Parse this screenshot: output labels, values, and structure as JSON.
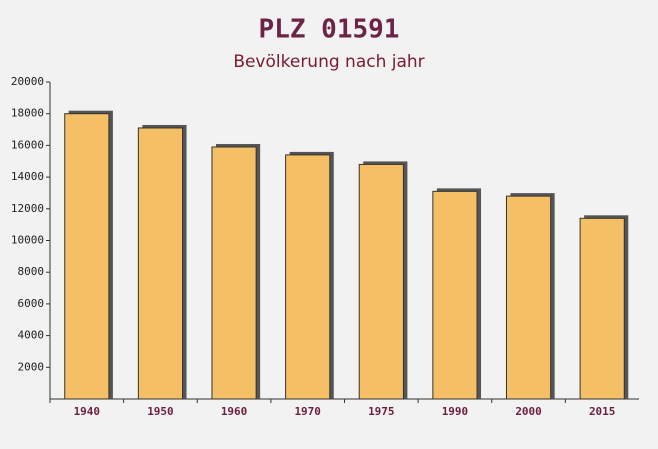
{
  "chart_data": {
    "type": "bar",
    "title": "PLZ 01591",
    "subtitle": "Bevölkerung nach jahr",
    "categories": [
      "1940",
      "1950",
      "1960",
      "1970",
      "1975",
      "1990",
      "2000",
      "2015"
    ],
    "values": [
      18000,
      17100,
      15900,
      15400,
      14800,
      13100,
      12800,
      11400
    ],
    "color": "#f5c065",
    "ylim": [
      0,
      20000
    ],
    "yticks": [
      2000,
      4000,
      6000,
      8000,
      10000,
      12000,
      14000,
      16000,
      18000,
      20000
    ]
  }
}
